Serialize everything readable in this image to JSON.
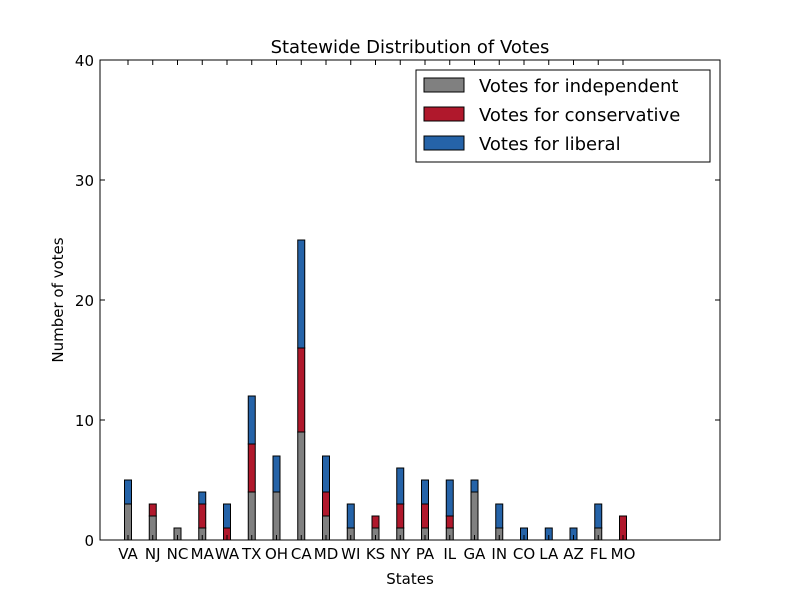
{
  "chart_data": {
    "type": "bar",
    "stacked": true,
    "title": "Statewide Distribution of Votes",
    "xlabel": "States",
    "ylabel": "Number of votes",
    "ylim": [
      0,
      40
    ],
    "yticks": [
      0,
      10,
      20,
      30,
      40
    ],
    "grid": false,
    "legend_position": "top-right",
    "categories": [
      "VA",
      "NJ",
      "NC",
      "MA",
      "WA",
      "TX",
      "OH",
      "CA",
      "MD",
      "WI",
      "KS",
      "NY",
      "PA",
      "IL",
      "GA",
      "IN",
      "CO",
      "LA",
      "AZ",
      "FL",
      "MO"
    ],
    "series": [
      {
        "name": "Votes for independent",
        "color": "#808080",
        "values": [
          3,
          2,
          1,
          1,
          0,
          4,
          4,
          9,
          2,
          1,
          1,
          1,
          1,
          1,
          4,
          1,
          0,
          0,
          0,
          1,
          0
        ]
      },
      {
        "name": "Votes for conservative",
        "color": "#b0182c",
        "values": [
          0,
          1,
          0,
          2,
          1,
          4,
          0,
          7,
          2,
          0,
          1,
          2,
          2,
          1,
          0,
          0,
          0,
          0,
          0,
          0,
          2
        ]
      },
      {
        "name": "Votes for liberal",
        "color": "#2563a8",
        "values": [
          2,
          0,
          0,
          1,
          2,
          4,
          3,
          9,
          3,
          2,
          0,
          3,
          2,
          3,
          1,
          2,
          1,
          1,
          1,
          2,
          0
        ]
      }
    ]
  }
}
